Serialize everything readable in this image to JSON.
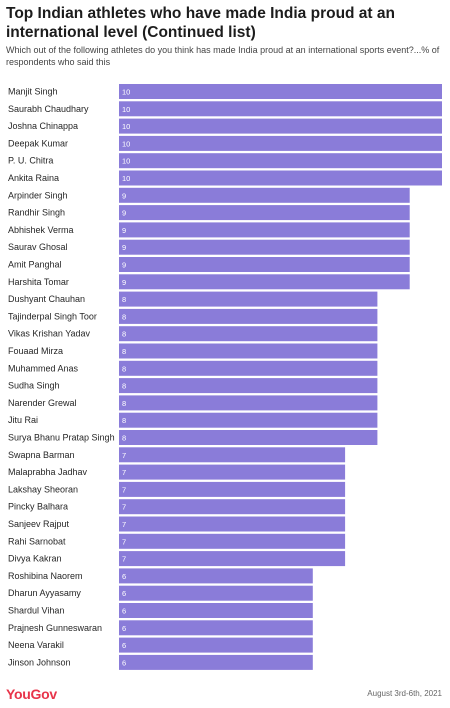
{
  "chart_data": {
    "type": "bar",
    "orientation": "horizontal",
    "title": "Top Indian athletes who have made India proud at an international level (Continued list)",
    "subtitle": "Which out of the following athletes do you think has made India proud at an international sports event?...% of respondents who said this",
    "categories": [
      "Manjit Singh",
      "Saurabh Chaudhary",
      "Joshna Chinappa",
      "Deepak Kumar",
      "P. U. Chitra",
      "Ankita Raina",
      "Arpinder Singh",
      "Randhir Singh",
      "Abhishek Verma",
      "Saurav Ghosal",
      "Amit Panghal",
      "Harshita Tomar",
      "Dushyant Chauhan",
      "Tajinderpal Singh Toor",
      "Vikas Krishan Yadav",
      "Fouaad Mirza",
      "Muhammed Anas",
      "Sudha Singh",
      "Narender Grewal",
      "Jitu Rai",
      "Surya Bhanu Pratap Singh",
      "Swapna Barman",
      "Malaprabha Jadhav",
      "Lakshay Sheoran",
      "Pincky Balhara",
      "Sanjeev Rajput",
      "Rahi Sarnobat",
      "Divya Kakran",
      "Roshibina Naorem",
      "Dharun Ayyasamy",
      "Shardul Vihan",
      "Prajnesh Gunneswaran",
      "Neena Varakil",
      "Jinson Johnson"
    ],
    "values": [
      10,
      10,
      10,
      10,
      10,
      10,
      9,
      9,
      9,
      9,
      9,
      9,
      8,
      8,
      8,
      8,
      8,
      8,
      8,
      8,
      8,
      7,
      7,
      7,
      7,
      7,
      7,
      7,
      6,
      6,
      6,
      6,
      6,
      6
    ],
    "xlim": [
      0,
      10
    ],
    "bar_color": "#8a7cd9",
    "grid": false,
    "legend": "none"
  },
  "footer": {
    "logo": "YouGov",
    "date": "August 3rd-6th, 2021"
  }
}
